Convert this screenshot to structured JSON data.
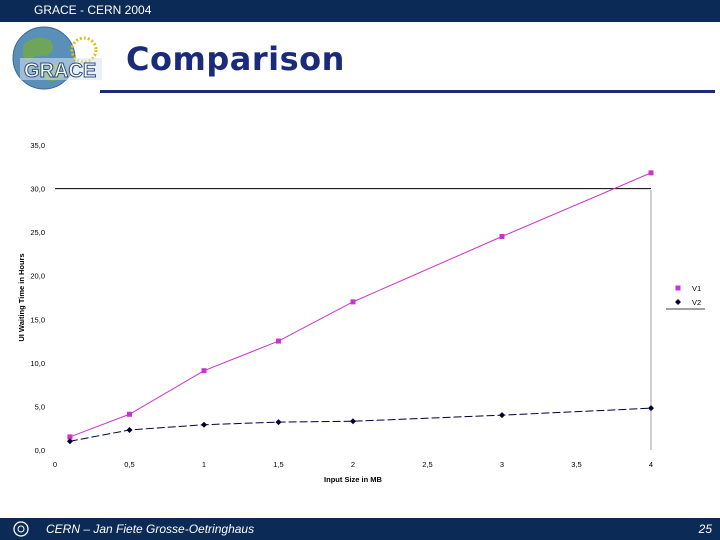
{
  "header": {
    "title": "GRACE - CERN 2004"
  },
  "slide": {
    "title": "Comparison",
    "logo_text": "GRACE"
  },
  "footer": {
    "author": "CERN – Jan Fiete Grosse-Oetringhaus",
    "page_number": "25"
  },
  "chart_data": {
    "type": "line",
    "xlabel": "Input Size in MB",
    "ylabel": "UI Waiting Time in Hours",
    "xlim": [
      0,
      4
    ],
    "ylim": [
      0,
      35
    ],
    "x_ticks": [
      "0",
      "0,5",
      "1",
      "1,5",
      "2",
      "2,5",
      "3",
      "3,5",
      "4"
    ],
    "y_ticks": [
      "0,0",
      "5,0",
      "10,0",
      "15,0",
      "20,0",
      "25,0",
      "30,0",
      "35,0"
    ],
    "legend_position": "right",
    "series": [
      {
        "name": "V1",
        "color": "#cc33cc",
        "marker": "square",
        "x": [
          0.1,
          0.5,
          1,
          1.5,
          2,
          3,
          4
        ],
        "y": [
          1.5,
          4.1,
          9.1,
          12.5,
          17.0,
          24.5,
          31.8
        ]
      },
      {
        "name": "V2",
        "color": "#000033",
        "marker": "diamond",
        "x": [
          0.1,
          0.5,
          1,
          1.5,
          2,
          3,
          4
        ],
        "y": [
          1.0,
          2.3,
          2.9,
          3.2,
          3.3,
          4.0,
          4.8
        ]
      }
    ]
  }
}
